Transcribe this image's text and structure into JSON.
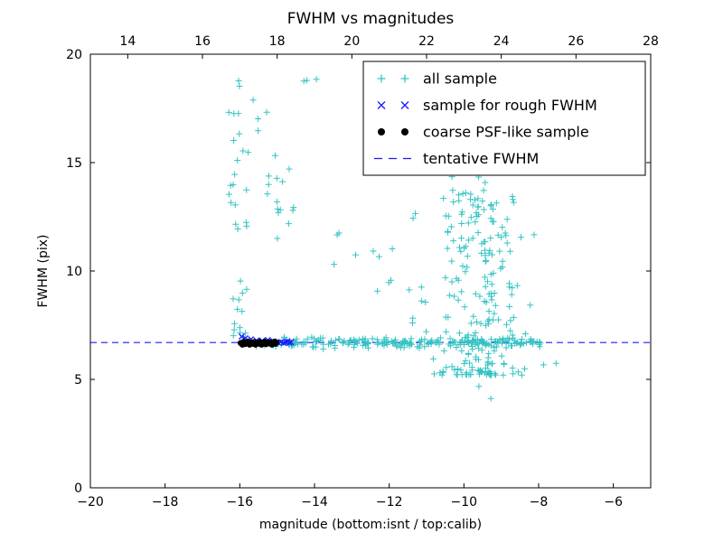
{
  "page": {
    "background": "#ffffff"
  },
  "chart_data": {
    "type": "scatter",
    "title": "FWHM vs magnitudes",
    "xlabel": "magnitude (bottom:isnt / top:calib)",
    "ylabel": "FWHM (pix)",
    "xlim": [
      -20,
      -5
    ],
    "ylim": [
      0,
      20
    ],
    "top_xlim": [
      13,
      28
    ],
    "x_ticks": [
      -20,
      -18,
      -16,
      -14,
      -12,
      -10,
      -8,
      -6
    ],
    "top_ticks": [
      14,
      16,
      18,
      20,
      22,
      24,
      26,
      28
    ],
    "y_ticks": [
      0,
      5,
      10,
      15,
      20
    ],
    "grid": false,
    "tentative_fwhm": 6.7,
    "seed": 20240915,
    "colors": {
      "all_sample": "#35c3c3",
      "rough_fwhm": "#1a1aff",
      "psf_like": "#000000",
      "tentative": "#1a1aff",
      "frame": "#000000",
      "text": "#000000",
      "background": "#ffffff"
    },
    "series": [
      {
        "name": "all sample",
        "marker": "plus",
        "color_key": "all_sample",
        "clusters": [
          {
            "count": 240,
            "x": [
              -15.95,
              -7.9
            ],
            "y": [
              6.35,
              7.05
            ],
            "ydist": "gauss-mid"
          },
          {
            "count": 26,
            "x": [
              -16.3,
              -15.75
            ],
            "y": [
              6.9,
              19.2
            ]
          },
          {
            "count": 8,
            "x": [
              -16.2,
              -15.85
            ],
            "y": [
              7.0,
              8.8
            ]
          },
          {
            "count": 4,
            "x": [
              -15.65,
              -15.2
            ],
            "y": [
              16.2,
              19.0
            ]
          },
          {
            "count": 15,
            "x": [
              -15.3,
              -14.55
            ],
            "y": [
              11.0,
              15.8
            ]
          },
          {
            "count": 3,
            "x": [
              -14.4,
              -13.9
            ],
            "y": [
              17.8,
              18.9
            ]
          },
          {
            "count": 10,
            "x": [
              -13.5,
              -11.2
            ],
            "y": [
              9.0,
              13.2
            ]
          },
          {
            "count": 10,
            "x": [
              -12.4,
              -11.0
            ],
            "y": [
              6.1,
              9.6
            ]
          },
          {
            "count": 200,
            "x": [
              -11.0,
              -8.1
            ],
            "xdist": "gauss",
            "y": [
              5.2,
              13.6
            ],
            "ydist": "low"
          },
          {
            "count": 22,
            "x": [
              -10.6,
              -9.1
            ],
            "y": [
              12.2,
              15.2
            ]
          },
          {
            "count": 9,
            "x": [
              -10.3,
              -7.5
            ],
            "y": [
              4.0,
              5.9
            ]
          }
        ]
      },
      {
        "name": "sample for rough FWHM",
        "marker": "x",
        "color_key": "rough_fwhm",
        "points": [
          [
            -15.95,
            6.98
          ],
          [
            -15.85,
            6.9
          ],
          [
            -15.7,
            6.85
          ],
          [
            -15.55,
            6.8
          ],
          [
            -15.4,
            6.78
          ],
          [
            -15.25,
            6.82
          ],
          [
            -15.1,
            6.76
          ],
          [
            -14.98,
            6.7
          ],
          [
            -14.9,
            6.73
          ],
          [
            -14.83,
            6.68
          ],
          [
            -14.77,
            6.72
          ],
          [
            -14.72,
            6.75
          ],
          [
            -14.67,
            6.69
          ],
          [
            -14.63,
            6.72
          ]
        ]
      },
      {
        "name": "coarse PSF-like sample",
        "marker": "dot",
        "color_key": "psf_like",
        "points": [
          [
            -15.98,
            6.68
          ],
          [
            -15.93,
            6.6
          ],
          [
            -15.9,
            6.72
          ],
          [
            -15.86,
            6.63
          ],
          [
            -15.82,
            6.69
          ],
          [
            -15.78,
            6.75
          ],
          [
            -15.74,
            6.6
          ],
          [
            -15.7,
            6.7
          ],
          [
            -15.66,
            6.64
          ],
          [
            -15.62,
            6.72
          ],
          [
            -15.58,
            6.6
          ],
          [
            -15.54,
            6.7
          ],
          [
            -15.5,
            6.66
          ],
          [
            -15.46,
            6.73
          ],
          [
            -15.42,
            6.6
          ],
          [
            -15.38,
            6.68
          ],
          [
            -15.34,
            6.74
          ],
          [
            -15.3,
            6.62
          ],
          [
            -15.26,
            6.7
          ],
          [
            -15.22,
            6.66
          ],
          [
            -15.18,
            6.72
          ],
          [
            -15.14,
            6.6
          ],
          [
            -15.1,
            6.68
          ],
          [
            -15.07,
            6.74
          ],
          [
            -15.04,
            6.64
          ],
          [
            -15.02,
            6.7
          ]
        ]
      },
      {
        "name": "tentative FWHM",
        "marker": "dashes",
        "color_key": "tentative",
        "hline": 6.7
      }
    ],
    "legend": {
      "position": "upper right",
      "items": [
        {
          "label": "all sample",
          "marker": "plus",
          "color_key": "all_sample"
        },
        {
          "label": "sample for rough FWHM",
          "marker": "x",
          "color_key": "rough_fwhm"
        },
        {
          "label": "coarse PSF-like sample",
          "marker": "dot",
          "color_key": "psf_like"
        },
        {
          "label": "tentative FWHM",
          "marker": "dashes",
          "color_key": "tentative"
        }
      ]
    }
  }
}
